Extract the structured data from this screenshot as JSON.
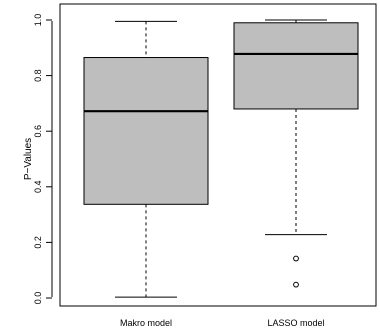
{
  "chart_data": {
    "type": "boxplot",
    "ylabel": "P−Values",
    "ylim": [
      0,
      1
    ],
    "yticks": [
      0.0,
      0.2,
      0.4,
      0.6,
      0.8,
      1.0
    ],
    "ytick_labels": [
      "0.0",
      "0.2",
      "0.4",
      "0.6",
      "0.8",
      "1.0"
    ],
    "categories": [
      "Makro model",
      "LASSO model"
    ],
    "boxes": [
      {
        "name": "Makro model",
        "whisker_low": 0.003,
        "q1": 0.337,
        "median": 0.672,
        "q3": 0.865,
        "whisker_high": 0.995,
        "outliers": []
      },
      {
        "name": "LASSO model",
        "whisker_low": 0.228,
        "q1": 0.68,
        "median": 0.878,
        "q3": 0.99,
        "whisker_high": 1.0,
        "outliers": [
          0.142,
          0.048
        ]
      }
    ],
    "colors": {
      "box_fill": "#bebebe",
      "stroke": "#000000"
    },
    "grid": false
  }
}
